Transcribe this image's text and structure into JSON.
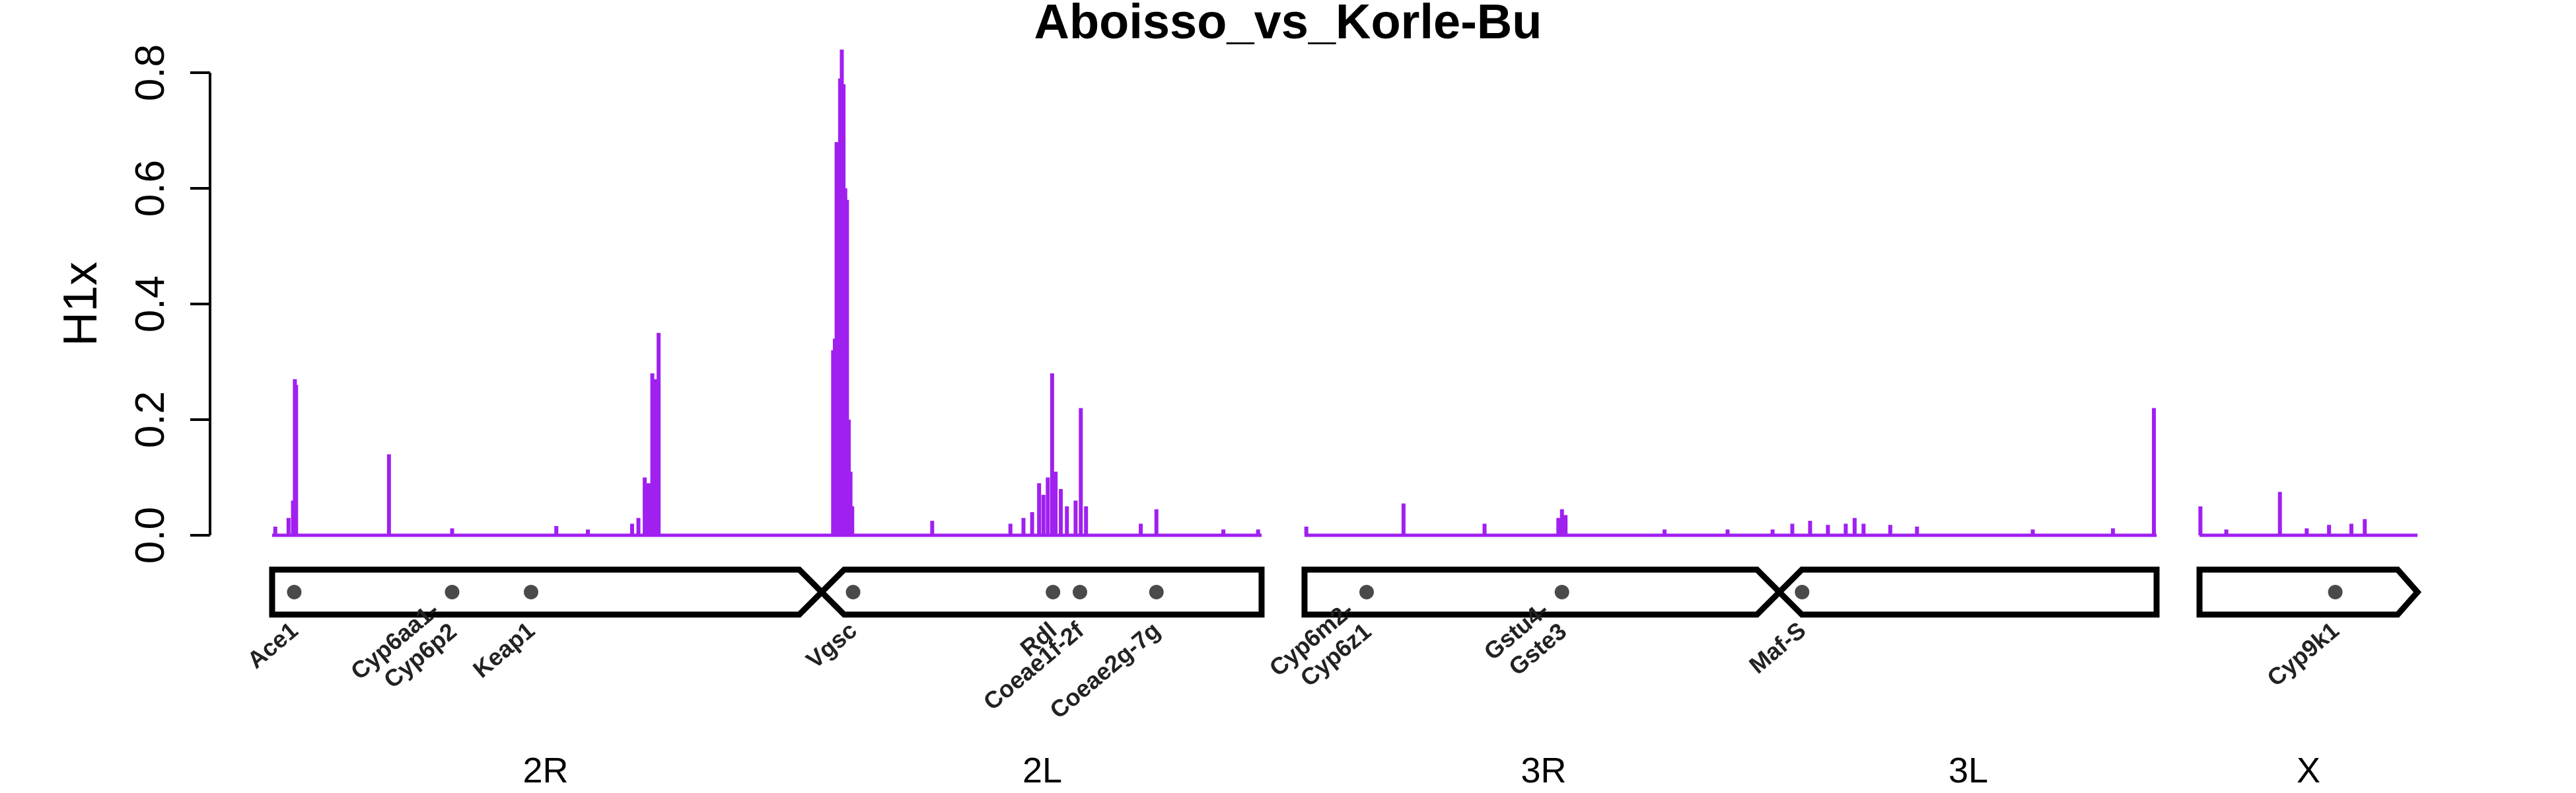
{
  "chart_data": {
    "type": "line",
    "title": "Aboisso_vs_Korle-Bu",
    "ylabel": "H1x",
    "xlabel": "",
    "ylim": [
      0,
      0.85
    ],
    "yticks": [
      "0.0",
      "0.2",
      "0.4",
      "0.6",
      "0.8"
    ],
    "series_color": "#a020f0",
    "chromosome_order": [
      "2R",
      "2L",
      "3R",
      "3L",
      "X"
    ],
    "chromosomes": [
      {
        "name": "2R",
        "length": 61.5
      },
      {
        "name": "2L",
        "length": 49.4
      },
      {
        "name": "3R",
        "length": 53.2
      },
      {
        "name": "3L",
        "length": 41.9
      },
      {
        "name": "X",
        "length": 24.4
      }
    ],
    "genes": [
      {
        "label": [
          "Ace1"
        ],
        "chrom": "2R",
        "pos": 3.5
      },
      {
        "label": [
          "Cyp6aa1-",
          "Cyp6p2"
        ],
        "chrom": "2R",
        "pos": 28.5
      },
      {
        "label": [
          "Keap1"
        ],
        "chrom": "2R",
        "pos": 41.0
      },
      {
        "label": [
          "Vgsc"
        ],
        "chrom": "2L",
        "pos": 2.4
      },
      {
        "label": [
          "Rdl"
        ],
        "chrom": "2L",
        "pos": 25.4
      },
      {
        "label": [
          "Coeae1f-2f"
        ],
        "chrom": "2L",
        "pos": 28.5
      },
      {
        "label": [
          "Coeae2g-7g"
        ],
        "chrom": "2L",
        "pos": 37.3
      },
      {
        "label": [
          "Cyp6m2-",
          "Cyp6z1"
        ],
        "chrom": "3R",
        "pos": 6.9
      },
      {
        "label": [
          "Gstu4-",
          "Gste3"
        ],
        "chrom": "3R",
        "pos": 28.6
      },
      {
        "label": [
          "Maf-S"
        ],
        "chrom": "3L",
        "pos": 2.1
      },
      {
        "label": [
          "Cyp9k1"
        ],
        "chrom": "X",
        "pos": 15.2
      }
    ],
    "peaks": [
      {
        "chrom": "2R",
        "pos": 0.5,
        "value": 0.015
      },
      {
        "chrom": "2R",
        "pos": 2.6,
        "value": 0.03
      },
      {
        "chrom": "2R",
        "pos": 3.3,
        "value": 0.06
      },
      {
        "chrom": "2R",
        "pos": 3.6,
        "value": 0.27
      },
      {
        "chrom": "2R",
        "pos": 3.8,
        "value": 0.26
      },
      {
        "chrom": "2R",
        "pos": 18.5,
        "value": 0.14
      },
      {
        "chrom": "2R",
        "pos": 28.5,
        "value": 0.012
      },
      {
        "chrom": "2R",
        "pos": 45.0,
        "value": 0.016
      },
      {
        "chrom": "2R",
        "pos": 50.0,
        "value": 0.01
      },
      {
        "chrom": "2R",
        "pos": 57.0,
        "value": 0.02
      },
      {
        "chrom": "2R",
        "pos": 58.0,
        "value": 0.03
      },
      {
        "chrom": "2R",
        "pos": 59.0,
        "value": 0.1
      },
      {
        "chrom": "2R",
        "pos": 59.6,
        "value": 0.09
      },
      {
        "chrom": "2R",
        "pos": 60.2,
        "value": 0.28
      },
      {
        "chrom": "2R",
        "pos": 60.7,
        "value": 0.27
      },
      {
        "chrom": "2R",
        "pos": 61.2,
        "value": 0.35
      },
      {
        "chrom": "2L",
        "pos": 0.1,
        "value": 0.32
      },
      {
        "chrom": "2L",
        "pos": 0.3,
        "value": 0.34
      },
      {
        "chrom": "2L",
        "pos": 0.5,
        "value": 0.68
      },
      {
        "chrom": "2L",
        "pos": 0.7,
        "value": 0.65
      },
      {
        "chrom": "2L",
        "pos": 0.9,
        "value": 0.79
      },
      {
        "chrom": "2L",
        "pos": 1.1,
        "value": 0.84
      },
      {
        "chrom": "2L",
        "pos": 1.3,
        "value": 0.78
      },
      {
        "chrom": "2L",
        "pos": 1.5,
        "value": 0.6
      },
      {
        "chrom": "2L",
        "pos": 1.7,
        "value": 0.58
      },
      {
        "chrom": "2L",
        "pos": 1.9,
        "value": 0.2
      },
      {
        "chrom": "2L",
        "pos": 2.1,
        "value": 0.11
      },
      {
        "chrom": "2L",
        "pos": 2.3,
        "value": 0.05
      },
      {
        "chrom": "2L",
        "pos": 11.5,
        "value": 0.025
      },
      {
        "chrom": "2L",
        "pos": 20.5,
        "value": 0.02
      },
      {
        "chrom": "2L",
        "pos": 22.0,
        "value": 0.03
      },
      {
        "chrom": "2L",
        "pos": 23.0,
        "value": 0.04
      },
      {
        "chrom": "2L",
        "pos": 23.8,
        "value": 0.09
      },
      {
        "chrom": "2L",
        "pos": 24.3,
        "value": 0.07
      },
      {
        "chrom": "2L",
        "pos": 24.8,
        "value": 0.1
      },
      {
        "chrom": "2L",
        "pos": 25.3,
        "value": 0.28
      },
      {
        "chrom": "2L",
        "pos": 25.7,
        "value": 0.11
      },
      {
        "chrom": "2L",
        "pos": 26.3,
        "value": 0.08
      },
      {
        "chrom": "2L",
        "pos": 27.0,
        "value": 0.05
      },
      {
        "chrom": "2L",
        "pos": 28.0,
        "value": 0.06
      },
      {
        "chrom": "2L",
        "pos": 28.6,
        "value": 0.22
      },
      {
        "chrom": "2L",
        "pos": 29.2,
        "value": 0.05
      },
      {
        "chrom": "2L",
        "pos": 35.5,
        "value": 0.02
      },
      {
        "chrom": "2L",
        "pos": 37.3,
        "value": 0.045
      },
      {
        "chrom": "2L",
        "pos": 45.0,
        "value": 0.01
      },
      {
        "chrom": "2L",
        "pos": 49.0,
        "value": 0.01
      },
      {
        "chrom": "3R",
        "pos": 0.2,
        "value": 0.015
      },
      {
        "chrom": "3R",
        "pos": 11.0,
        "value": 0.055
      },
      {
        "chrom": "3R",
        "pos": 20.0,
        "value": 0.02
      },
      {
        "chrom": "3R",
        "pos": 28.2,
        "value": 0.03
      },
      {
        "chrom": "3R",
        "pos": 28.6,
        "value": 0.045
      },
      {
        "chrom": "3R",
        "pos": 29.0,
        "value": 0.035
      },
      {
        "chrom": "3R",
        "pos": 40.0,
        "value": 0.01
      },
      {
        "chrom": "3R",
        "pos": 47.0,
        "value": 0.01
      },
      {
        "chrom": "3R",
        "pos": 52.0,
        "value": 0.01
      },
      {
        "chrom": "3L",
        "pos": 1.0,
        "value": 0.02
      },
      {
        "chrom": "3L",
        "pos": 3.0,
        "value": 0.025
      },
      {
        "chrom": "3L",
        "pos": 5.0,
        "value": 0.018
      },
      {
        "chrom": "3L",
        "pos": 7.0,
        "value": 0.02
      },
      {
        "chrom": "3L",
        "pos": 8.0,
        "value": 0.03
      },
      {
        "chrom": "3L",
        "pos": 9.0,
        "value": 0.02
      },
      {
        "chrom": "3L",
        "pos": 12.0,
        "value": 0.018
      },
      {
        "chrom": "3L",
        "pos": 15.0,
        "value": 0.015
      },
      {
        "chrom": "3L",
        "pos": 28.0,
        "value": 0.01
      },
      {
        "chrom": "3L",
        "pos": 37.0,
        "value": 0.012
      },
      {
        "chrom": "3L",
        "pos": 41.6,
        "value": 0.22
      },
      {
        "chrom": "X",
        "pos": 0.1,
        "value": 0.05
      },
      {
        "chrom": "X",
        "pos": 3.0,
        "value": 0.01
      },
      {
        "chrom": "X",
        "pos": 9.0,
        "value": 0.075
      },
      {
        "chrom": "X",
        "pos": 12.0,
        "value": 0.012
      },
      {
        "chrom": "X",
        "pos": 14.5,
        "value": 0.018
      },
      {
        "chrom": "X",
        "pos": 17.0,
        "value": 0.02
      },
      {
        "chrom": "X",
        "pos": 18.5,
        "value": 0.028
      }
    ]
  }
}
